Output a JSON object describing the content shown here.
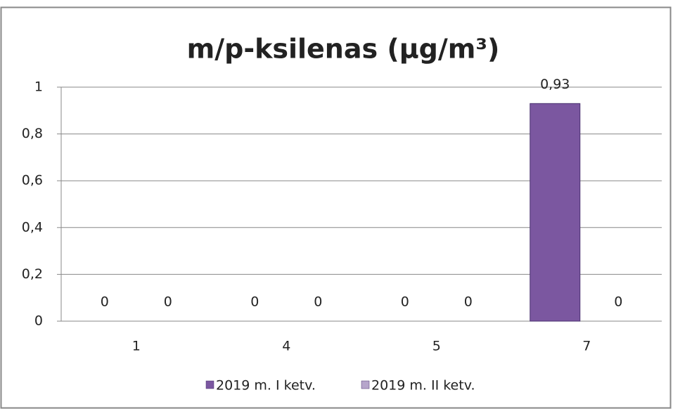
{
  "chart_data": {
    "type": "bar",
    "title": "m/p-ksilenas (µg/m³)",
    "categories": [
      "1",
      "4",
      "5",
      "7"
    ],
    "series": [
      {
        "name": "2019 m. I ketv.",
        "color": "#7b57a0",
        "values": [
          0,
          0,
          0,
          0.93
        ],
        "value_labels": [
          "0",
          "0",
          "0",
          "0,93"
        ]
      },
      {
        "name": "2019 m. II ketv.",
        "color": "#b6a5cb",
        "values": [
          0,
          0,
          0,
          0
        ],
        "value_labels": [
          "0",
          "0",
          "0",
          "0"
        ]
      }
    ],
    "ylim": [
      0,
      1
    ],
    "yticks": [
      0,
      {
        "value": 0.2,
        "label": "0,2"
      },
      {
        "value": 0.4,
        "label": "0,4"
      },
      {
        "value": 0.6,
        "label": "0,6"
      },
      {
        "value": 0.8,
        "label": "0,8"
      },
      1
    ],
    "grid": true,
    "legend": "bottom"
  }
}
